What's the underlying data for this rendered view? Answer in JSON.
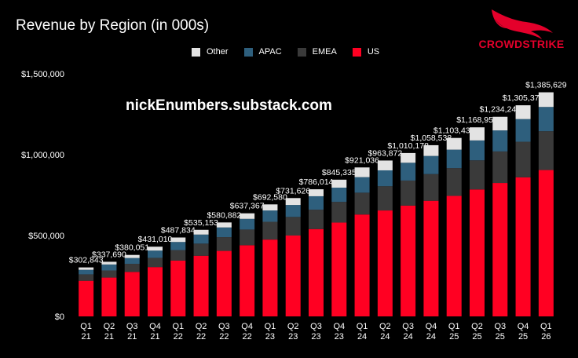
{
  "header": {
    "title": "Revenue by Region (in 000s)",
    "watermark": "nickEnumbers.substack.com",
    "brand_name": "CROWDSTRIKE"
  },
  "colors": {
    "background": "#000000",
    "us": "#ff0022",
    "emea": "#3a3a3a",
    "apac": "#2e5f7d",
    "other": "#e3e3e3",
    "brand": "#e4002b"
  },
  "chart_data": {
    "type": "bar",
    "stacked": true,
    "title": "Revenue by Region (in 000s)",
    "categories": [
      [
        "Q1",
        "21"
      ],
      [
        "Q2",
        "21"
      ],
      [
        "Q3",
        "21"
      ],
      [
        "Q4",
        "21"
      ],
      [
        "Q1",
        "22"
      ],
      [
        "Q2",
        "22"
      ],
      [
        "Q3",
        "22"
      ],
      [
        "Q4",
        "22"
      ],
      [
        "Q1",
        "23"
      ],
      [
        "Q2",
        "23"
      ],
      [
        "Q3",
        "23"
      ],
      [
        "Q4",
        "23"
      ],
      [
        "Q1",
        "24"
      ],
      [
        "Q2",
        "24"
      ],
      [
        "Q3",
        "24"
      ],
      [
        "Q4",
        "24"
      ],
      [
        "Q1",
        "25"
      ],
      [
        "Q2",
        "25"
      ],
      [
        "Q3",
        "25"
      ],
      [
        "Q4",
        "25"
      ],
      [
        "Q1",
        "26"
      ]
    ],
    "series": [
      {
        "name": "US",
        "color": "#ff0022",
        "values": [
          220000,
          240000,
          275000,
          305000,
          345000,
          375000,
          405000,
          440000,
          475000,
          500000,
          540000,
          580000,
          630000,
          655000,
          685000,
          715000,
          745000,
          785000,
          825000,
          860000,
          905000
        ]
      },
      {
        "name": "EMEA",
        "color": "#3a3a3a",
        "values": [
          40000,
          44000,
          50000,
          57000,
          65000,
          75000,
          85000,
          97000,
          110000,
          115000,
          120000,
          128000,
          135000,
          150000,
          155000,
          165000,
          172000,
          180000,
          195000,
          220000,
          240000
        ]
      },
      {
        "name": "APAC",
        "color": "#2e5f7d",
        "values": [
          28000,
          37000,
          36000,
          45000,
          50000,
          56000,
          60000,
          66000,
          70000,
          74000,
          83000,
          88000,
          96000,
          98000,
          110000,
          112000,
          114000,
          123000,
          130000,
          140000,
          150000
        ]
      },
      {
        "name": "Other",
        "color": "#e3e3e3",
        "values": [
          14843,
          16690,
          19051,
          24010,
          27834,
          29153,
          30882,
          34367,
          37580,
          42626,
          43014,
          49335,
          60036,
          60872,
          60178,
          66538,
          72434,
          80952,
          84244,
          85375,
          90629
        ]
      }
    ],
    "totals": [
      302843,
      337690,
      380051,
      431010,
      487834,
      535153,
      580882,
      637367,
      692580,
      731626,
      786014,
      845335,
      921036,
      963872,
      1010178,
      1058538,
      1103434,
      1168952,
      1234244,
      1305375,
      1385629
    ],
    "total_labels": [
      "$302,843",
      "$337,690",
      "$380,051",
      "$431,010",
      "$487,834",
      "$535,153",
      "$580,882",
      "$637,367",
      "$692,580",
      "$731,626",
      "$786,014",
      "$845,335",
      "$921,036",
      "$963,872",
      "$1,010,178",
      "$1,058,538",
      "$1,103,434",
      "$1,168,952",
      "$1,234,244",
      "$1,305,375",
      "$1,385,629"
    ],
    "legend": [
      "Other",
      "APAC",
      "EMEA",
      "US"
    ],
    "legend_position": "top",
    "ylim": [
      0,
      1500000
    ],
    "yticks": [
      0,
      500000,
      1000000,
      1500000
    ],
    "ytick_labels": [
      "$0",
      "$500,000",
      "$1,000,000",
      "$1,500,000"
    ],
    "grid": false,
    "xlabel": "",
    "ylabel": ""
  }
}
